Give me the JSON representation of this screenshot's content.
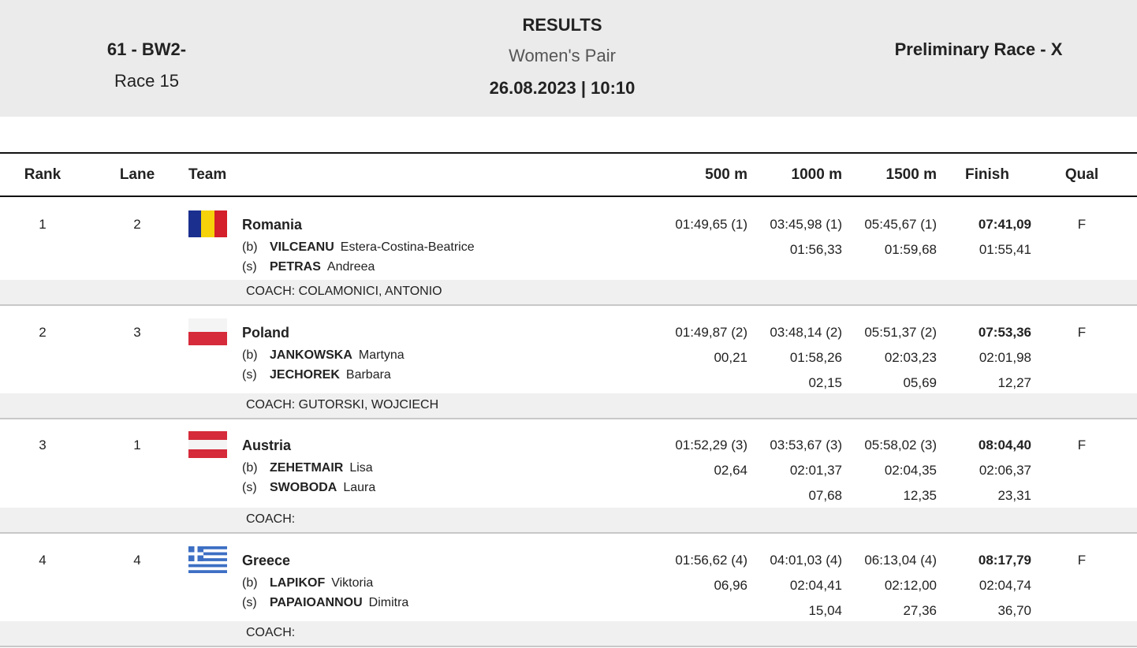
{
  "header": {
    "event": "61 - BW2-",
    "race": "Race 15",
    "title": "RESULTS",
    "subtitle": "Women's Pair",
    "datetime": "26.08.2023 | 10:10",
    "phase": "Preliminary Race - X"
  },
  "table": {
    "columns": [
      "Rank",
      "Lane",
      "Team",
      "500 m",
      "1000 m",
      "1500 m",
      "Finish",
      "Qual"
    ],
    "rows": [
      {
        "rank": 1,
        "lane": 2,
        "team": "Romania",
        "crew": [
          {
            "seat": "(b)",
            "surname": "VILCEANU",
            "given": "Estera-Costina-Beatrice"
          },
          {
            "seat": "(s)",
            "surname": "PETRAS",
            "given": "Andreea"
          }
        ],
        "times": [
          [
            "01:49,65 (1)",
            "03:45,98 (1)",
            "05:45,67 (1)",
            "07:41,09"
          ],
          [
            null,
            "01:56,33",
            "01:59,68",
            "01:55,41"
          ]
        ],
        "qual": "F",
        "coach": "COACH: COLAMONICI, ANTONIO"
      },
      {
        "rank": 2,
        "lane": 3,
        "team": "Poland",
        "crew": [
          {
            "seat": "(b)",
            "surname": "JANKOWSKA",
            "given": "Martyna"
          },
          {
            "seat": "(s)",
            "surname": "JECHOREK",
            "given": "Barbara"
          }
        ],
        "times": [
          [
            "01:49,87 (2)",
            "03:48,14 (2)",
            "05:51,37 (2)",
            "07:53,36"
          ],
          [
            "00,21",
            "01:58,26",
            "02:03,23",
            "02:01,98"
          ],
          [
            null,
            "02,15",
            "05,69",
            "12,27"
          ]
        ],
        "qual": "F",
        "coach": "COACH: GUTORSKI, WOJCIECH"
      },
      {
        "rank": 3,
        "lane": 1,
        "team": "Austria",
        "crew": [
          {
            "seat": "(b)",
            "surname": "ZEHETMAIR",
            "given": "Lisa"
          },
          {
            "seat": "(s)",
            "surname": "SWOBODA",
            "given": "Laura"
          }
        ],
        "times": [
          [
            "01:52,29 (3)",
            "03:53,67 (3)",
            "05:58,02 (3)",
            "08:04,40"
          ],
          [
            "02,64",
            "02:01,37",
            "02:04,35",
            "02:06,37"
          ],
          [
            null,
            "07,68",
            "12,35",
            "23,31"
          ]
        ],
        "qual": "F",
        "coach": "COACH:"
      },
      {
        "rank": 4,
        "lane": 4,
        "team": "Greece",
        "crew": [
          {
            "seat": "(b)",
            "surname": "LAPIKOF",
            "given": "Viktoria"
          },
          {
            "seat": "(s)",
            "surname": "PAPAIOANNOU",
            "given": "Dimitra"
          }
        ],
        "times": [
          [
            "01:56,62 (4)",
            "04:01,03 (4)",
            "06:13,04 (4)",
            "08:17,79"
          ],
          [
            "06,96",
            "02:04,41",
            "02:12,00",
            "02:04,74"
          ],
          [
            null,
            "15,04",
            "27,36",
            "36,70"
          ]
        ],
        "qual": "F",
        "coach": "COACH:"
      }
    ]
  }
}
